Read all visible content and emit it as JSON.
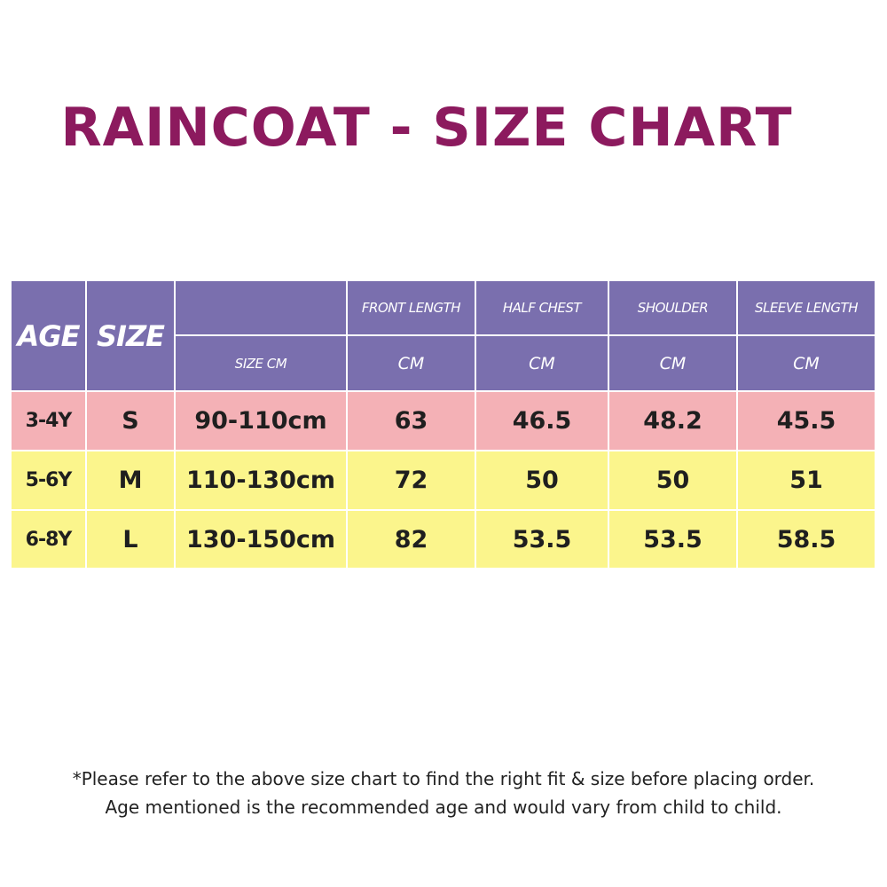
{
  "title": "RAINCOAT - SIZE CHART",
  "table": {
    "headers": {
      "age": "AGE",
      "size": "SIZE",
      "size_cm": "SIZE CM",
      "front_length": "FRONT LENGTH",
      "half_chest": "HALF CHEST",
      "shoulder": "SHOULDER",
      "sleeve_length": "SLEEVE LENGTH",
      "unit": "CM"
    },
    "rows": [
      {
        "age": "3-4Y",
        "size": "S",
        "size_cm": "90-110cm",
        "front_length": "63",
        "half_chest": "46.5",
        "shoulder": "48.2",
        "sleeve_length": "45.5"
      },
      {
        "age": "5-6Y",
        "size": "M",
        "size_cm": "110-130cm",
        "front_length": "72",
        "half_chest": "50",
        "shoulder": "50",
        "sleeve_length": "51"
      },
      {
        "age": "6-8Y",
        "size": "L",
        "size_cm": "130-150cm",
        "front_length": "82",
        "half_chest": "53.5",
        "shoulder": "53.5",
        "sleeve_length": "58.5"
      }
    ]
  },
  "notes": [
    "*Please refer to the above size chart to find the right fit & size before placing order.",
    "Age mentioned is the recommended age and would vary from child to child."
  ],
  "colors": {
    "title": "#8c1a5e",
    "header_bg": "#7a6fae",
    "row_s_bg": "#f4b1b6",
    "row_ml_bg": "#fbf58c"
  }
}
